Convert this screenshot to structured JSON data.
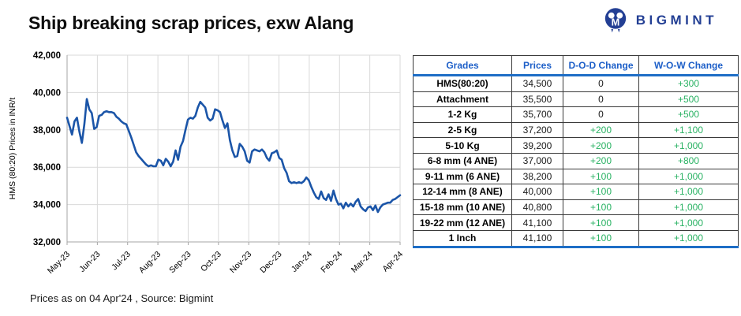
{
  "header": {
    "title": "Ship breaking scrap prices, exw Alang",
    "logo_text": "BIGMINT"
  },
  "footer": {
    "note": "Prices as on 04 Apr'24 , Source: Bigmint"
  },
  "colors": {
    "line": "#1b55a8",
    "grid": "#d9d9d9",
    "axis": "#a6a6a6",
    "table_header_text": "#1d5fc8",
    "table_accent_border": "#1e6ec6",
    "positive": "#29b263",
    "logo_navy": "#233f94"
  },
  "chart_data": {
    "type": "line",
    "title": "Ship breaking scrap prices, exw Alang",
    "xlabel": "",
    "ylabel": "HMS (80:20) Prices in INR/t",
    "ylim": [
      32000,
      42000
    ],
    "ytick_step": 2000,
    "grid": true,
    "legend": "none",
    "categories": [
      "May-23",
      "Jun-23",
      "Jul-23",
      "Aug-23",
      "Sep-23",
      "Oct-23",
      "Nov-23",
      "Dec-23",
      "Jan-24",
      "Feb-24",
      "Mar-24",
      "Apr-24"
    ],
    "series": [
      {
        "name": "HMS (80:20) Prices in INR/t",
        "values": [
          38650,
          38200,
          37750,
          38450,
          38650,
          37900,
          37300,
          38300,
          39650,
          39100,
          38900,
          38050,
          38150,
          38750,
          38800,
          38950,
          39000,
          38950,
          38950,
          38900,
          38700,
          38600,
          38450,
          38350,
          38300,
          37950,
          37600,
          37200,
          36800,
          36600,
          36450,
          36300,
          36150,
          36050,
          36100,
          36050,
          36050,
          36400,
          36350,
          36100,
          36450,
          36300,
          36050,
          36300,
          36900,
          36400,
          37100,
          37400,
          38000,
          38550,
          38650,
          38600,
          38750,
          39200,
          39500,
          39350,
          39200,
          38650,
          38500,
          38600,
          39100,
          39050,
          38950,
          38500,
          38100,
          38350,
          37450,
          36900,
          36550,
          36600,
          37250,
          37100,
          36850,
          36350,
          36250,
          36850,
          36950,
          36900,
          36850,
          36950,
          36800,
          36500,
          36350,
          36750,
          36800,
          36900,
          36500,
          36400,
          35950,
          35700,
          35250,
          35150,
          35200,
          35150,
          35200,
          35150,
          35250,
          35450,
          35300,
          34950,
          34650,
          34400,
          34300,
          34700,
          34350,
          34250,
          34550,
          34200,
          34750,
          34300,
          34000,
          34050,
          33800,
          34100,
          33900,
          34050,
          33900,
          34150,
          34300,
          33900,
          33750,
          33650,
          33850,
          33900,
          33700,
          33950,
          33600,
          33850,
          34000,
          34050,
          34100,
          34100,
          34250,
          34300,
          34400,
          34500
        ]
      }
    ]
  },
  "table": {
    "columns": [
      "Grades",
      "Prices",
      "D-O-D Change",
      "W-O-W Change"
    ],
    "rows": [
      [
        "HMS(80:20)",
        "34,500",
        "0",
        "+300"
      ],
      [
        "Attachment",
        "35,500",
        "0",
        "+500"
      ],
      [
        "1-2 Kg",
        "35,700",
        "0",
        "+500"
      ],
      [
        "2-5 Kg",
        "37,200",
        "+200",
        "+1,100"
      ],
      [
        "5-10 Kg",
        "39,200",
        "+200",
        "+1,000"
      ],
      [
        "6-8 mm (4 ANE)",
        "37,000",
        "+200",
        "+800"
      ],
      [
        "9-11 mm (6 ANE)",
        "38,200",
        "+100",
        "+1,000"
      ],
      [
        "12-14 mm (8 ANE)",
        "40,000",
        "+100",
        "+1,000"
      ],
      [
        "15-18 mm (10 ANE)",
        "40,800",
        "+100",
        "+1,000"
      ],
      [
        "19-22 mm (12 ANE)",
        "41,100",
        "+100",
        "+1,000"
      ],
      [
        "1 Inch",
        "41,100",
        "+100",
        "+1,000"
      ]
    ]
  }
}
